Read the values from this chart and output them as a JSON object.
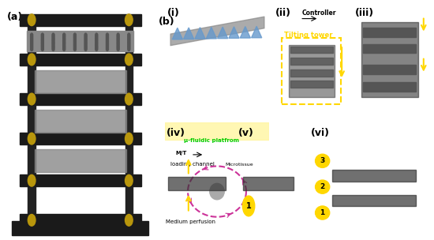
{
  "fig_width": 5.5,
  "fig_height": 3.04,
  "dpi": 100,
  "bg_color": "#ffffff",
  "label_a": "(a)",
  "label_b": "(b)",
  "label_i": "(i)",
  "label_ii": "(ii)",
  "label_iii": "(iii)",
  "label_iv": "(iv)",
  "label_v": "(v)",
  "label_vi": "(vi)",
  "text_controller": "Controller",
  "text_tilting": "Tilting tower",
  "text_loading": "loading channel",
  "text_medium": "Medium perfusion",
  "text_microtissue": "Microtissue",
  "text_mt": "M/T",
  "text_ufluidic": "μ-fluidic platfrom",
  "panel_a_color": "#d8d8d8",
  "panel_i_top_color": "#e8e8e8",
  "panel_i_bot_color": "#c8dff0",
  "panel_ii_color": "#c8c8b8",
  "panel_iii_color": "#b8b8a8",
  "panel_iv_color": "#b8b8b0",
  "panel_v_color": "#b8b8b0",
  "panel_vi_color": "#b8b8b0",
  "yellow_color": "#FFD700",
  "green_color": "#00CC00",
  "arrow_color": "#FFD700",
  "dashed_box_color": "#FFD700",
  "label_fontsize": 9,
  "annotation_fontsize": 6.5,
  "num_label_fontsize": 8
}
